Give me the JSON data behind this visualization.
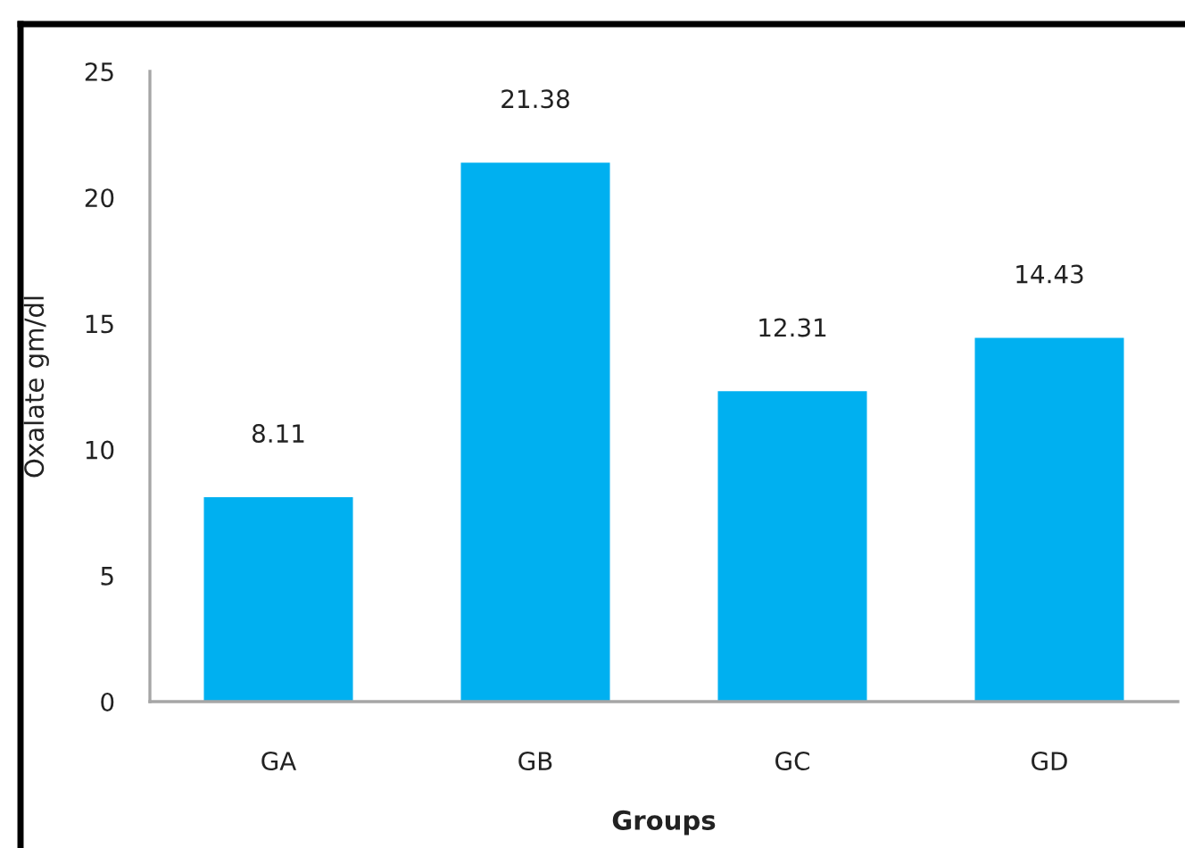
{
  "chart_data": {
    "type": "bar",
    "xlabel": "Groups",
    "ylabel": "Oxalate gm/dl",
    "categories": [
      "GA",
      "GB",
      "GC",
      "GD"
    ],
    "values": [
      8.11,
      21.38,
      12.31,
      14.43
    ],
    "color": "#00b0f0",
    "ylim": [
      0,
      25
    ],
    "yticks": [
      0,
      5,
      10,
      15,
      20,
      25
    ],
    "data_labels": true,
    "grid": false
  }
}
